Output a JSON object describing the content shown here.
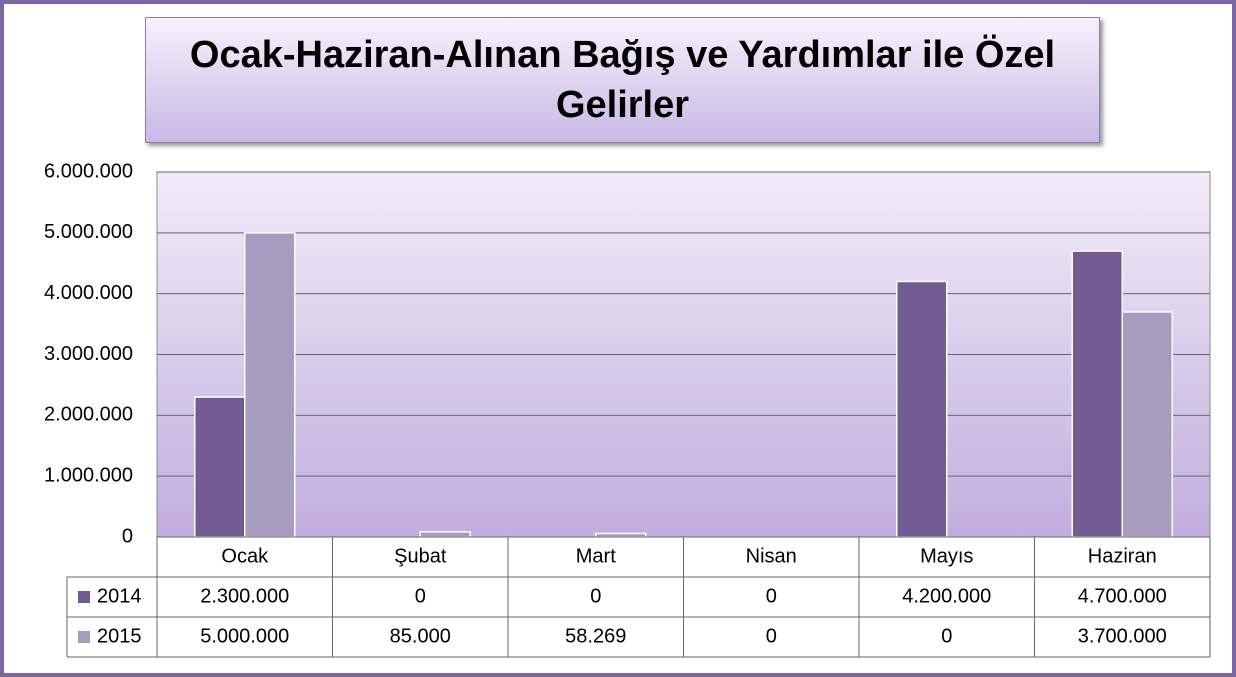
{
  "chart_data": {
    "type": "bar",
    "title": "Ocak-Haziran-Alınan Bağış ve Yardımlar ile Özel Gelirler",
    "categories": [
      "Ocak",
      "Şubat",
      "Mart",
      "Nisan",
      "Mayıs",
      "Haziran"
    ],
    "series": [
      {
        "name": "2014",
        "color": "#725a92",
        "values": [
          2300000,
          0,
          0,
          0,
          4200000,
          4700000
        ],
        "value_labels": [
          "2.300.000",
          "0",
          "0",
          "0",
          "4.200.000",
          "4.700.000"
        ]
      },
      {
        "name": "2015",
        "color": "#a89bc0",
        "values": [
          5000000,
          85000,
          58269,
          0,
          0,
          3700000
        ],
        "value_labels": [
          "5.000.000",
          "85.000",
          "58.269",
          "0",
          "0",
          "3.700.000"
        ]
      }
    ],
    "ylim": [
      0,
      6000000
    ],
    "yticks": [
      0,
      {
        "value": 1000000,
        "label": "1.000.000"
      },
      {
        "value": 2000000,
        "label": "2.000.000"
      },
      {
        "value": 3000000,
        "label": "3.000.000"
      },
      {
        "value": 4000000,
        "label": "4.000.000"
      },
      {
        "value": 5000000,
        "label": "5.000.000"
      },
      {
        "value": 6000000,
        "label": "6.000.000"
      }
    ],
    "grid": true
  }
}
